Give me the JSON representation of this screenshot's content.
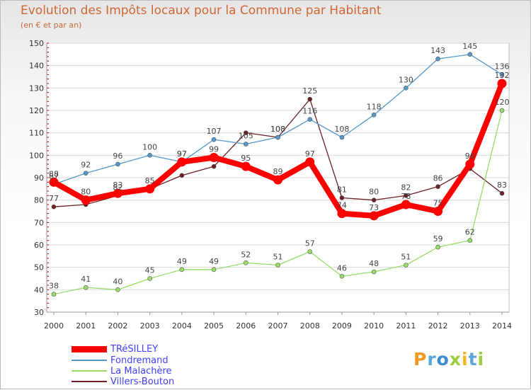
{
  "header": {
    "title": "Evolution des Impôts locaux pour la Commune par Habitant",
    "subtitle": "(en € et par an)"
  },
  "colors": {
    "title": "#cc6633",
    "axis_text": "#333333",
    "grid": "#d9d9d9",
    "legend_text": "#4040ff"
  },
  "chart_data": {
    "type": "line",
    "title": "Evolution des Impôts locaux pour la Commune par Habitant",
    "subtitle": "(en € et par an)",
    "xlabel": "",
    "ylabel": "",
    "ylim": [
      30,
      150
    ],
    "yticks": [
      30,
      40,
      50,
      60,
      70,
      80,
      90,
      100,
      110,
      120,
      130,
      140,
      150
    ],
    "grid": true,
    "legend_position": "bottom-left",
    "categories": [
      "2000",
      "2001",
      "2002",
      "2003",
      "2004",
      "2005",
      "2006",
      "2007",
      "2008",
      "2009",
      "2010",
      "2011",
      "2012",
      "2013",
      "2014"
    ],
    "series": [
      {
        "name": "Villers-Bouton",
        "color": "#6b1e24",
        "values": [
          77,
          78,
          82,
          85,
          91,
          95,
          110,
          108,
          125,
          81,
          80,
          82,
          86,
          94,
          83
        ],
        "labels": [
          "77",
          "",
          "82",
          "",
          "",
          "",
          "",
          "108",
          "125",
          "81",
          "80",
          "82",
          "86",
          "",
          "83"
        ]
      },
      {
        "name": "La Malachère",
        "color": "#99dd66",
        "values": [
          38,
          41,
          40,
          45,
          49,
          49,
          52,
          51,
          57,
          46,
          48,
          51,
          59,
          62,
          120
        ],
        "labels": [
          "38",
          "41",
          "40",
          "45",
          "49",
          "49",
          "52",
          "51",
          "57",
          "46",
          "48",
          "51",
          "59",
          "62",
          "120"
        ]
      },
      {
        "name": "Fondremand",
        "color": "#5599cc",
        "values": [
          87,
          92,
          96,
          100,
          97,
          107,
          105,
          108,
          116,
          108,
          118,
          130,
          143,
          145,
          136
        ],
        "labels": [
          "87",
          "92",
          "96",
          "100",
          "97",
          "107",
          "105",
          "108",
          "116",
          "108",
          "118",
          "130",
          "143",
          "145",
          "136"
        ]
      },
      {
        "name": "TRéSILLEY",
        "color": "#ff0000",
        "values": [
          88,
          80,
          83,
          85,
          97,
          99,
          95,
          89,
          97,
          74,
          73,
          78,
          75,
          96,
          132
        ],
        "labels": [
          "88",
          "80",
          "83",
          "85",
          "97",
          "99",
          "95",
          "89",
          "97",
          "74",
          "73",
          "78",
          "75",
          "96",
          "132"
        ]
      }
    ]
  },
  "legend": {
    "items": [
      {
        "label": "TRéSILLEY",
        "color": "#ff0000"
      },
      {
        "label": "Fondremand",
        "color": "#5599cc"
      },
      {
        "label": "La Malachère",
        "color": "#99dd66"
      },
      {
        "label": "Villers-Bouton",
        "color": "#6b1e24"
      }
    ]
  },
  "logo": {
    "text": "Proxiti",
    "letters": [
      {
        "char": "P",
        "color": "#f29a1e"
      },
      {
        "char": "r",
        "color": "#5aa7d8"
      },
      {
        "char": "o",
        "color": "#3d8fd0"
      },
      {
        "char": "x",
        "color": "#9ccd3f"
      },
      {
        "char": "i",
        "color": "#f2b51e"
      },
      {
        "char": "t",
        "color": "#5aa7d8"
      },
      {
        "char": "i",
        "color": "#9ccd3f"
      }
    ]
  }
}
